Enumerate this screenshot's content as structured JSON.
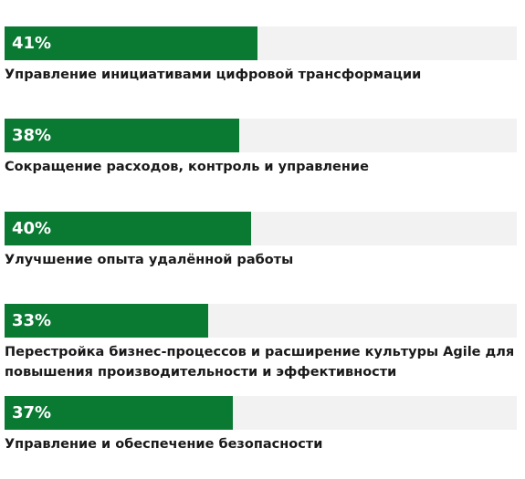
{
  "colors": {
    "bar": "#0a7a33",
    "track": "#f2f2f2",
    "text": "#1a1a1a",
    "bar_text": "#ffffff"
  },
  "chart_data": {
    "type": "bar",
    "orientation": "horizontal",
    "title": "",
    "xlabel": "",
    "ylabel": "",
    "xlim": [
      0,
      83
    ],
    "grid": false,
    "unit": "%",
    "categories": [
      "Управление инициативами цифровой трансформации",
      "Сокращение расходов, контроль и управление",
      "Улучшение опыта удалённой работы",
      "Перестройка бизнес-процессов и расширение культуры Agile для повышения производительности и эффективности",
      "Управление и обеспечение безопасности"
    ],
    "values": [
      41,
      38,
      40,
      33,
      37
    ],
    "value_labels": [
      "41%",
      "38%",
      "40%",
      "33%",
      "37%"
    ]
  }
}
